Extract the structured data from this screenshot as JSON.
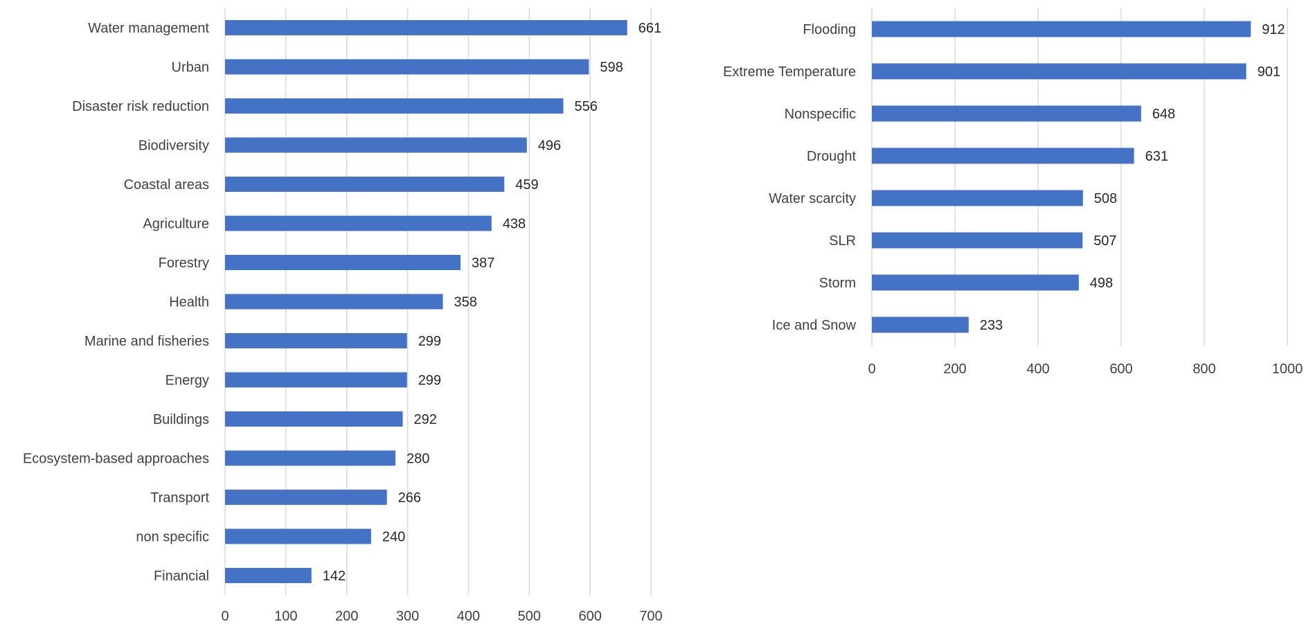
{
  "chart_data": [
    {
      "type": "bar",
      "orientation": "horizontal",
      "title": "",
      "xlabel": "",
      "ylabel": "",
      "categories": [
        "Water management",
        "Urban",
        "Disaster risk reduction",
        "Biodiversity",
        "Coastal areas",
        "Agriculture",
        "Forestry",
        "Health",
        "Marine and fisheries",
        "Energy",
        "Buildings",
        "Ecosystem-based approaches",
        "Transport",
        "non specific",
        "Financial"
      ],
      "values": [
        661,
        598,
        556,
        496,
        459,
        438,
        387,
        358,
        299,
        299,
        292,
        280,
        266,
        240,
        142
      ],
      "value_labels": [
        "661",
        "598",
        "556",
        "496",
        "459",
        "438",
        "387",
        "358",
        "299",
        "299",
        "292",
        "280",
        "266",
        "240",
        "142"
      ],
      "xlim": [
        0,
        700
      ],
      "xticks": [
        "0",
        "100",
        "200",
        "300",
        "400",
        "500",
        "600",
        "700"
      ],
      "grid": "vertical",
      "bar_color": "#4472C4",
      "legend": "none"
    },
    {
      "type": "bar",
      "orientation": "horizontal",
      "title": "",
      "xlabel": "",
      "ylabel": "",
      "categories": [
        "Flooding",
        "Extreme Temperature",
        "Nonspecific",
        "Drought",
        "Water scarcity",
        "SLR",
        "Storm",
        "Ice and Snow"
      ],
      "values": [
        912,
        901,
        648,
        631,
        508,
        507,
        498,
        233
      ],
      "value_labels": [
        "912",
        "901",
        "648",
        "631",
        "508",
        "507",
        "498",
        "233"
      ],
      "xlim": [
        0,
        1000
      ],
      "xticks": [
        "0",
        "200",
        "400",
        "600",
        "800",
        "1000"
      ],
      "grid": "vertical",
      "bar_color": "#4472C4",
      "legend": "none"
    }
  ]
}
